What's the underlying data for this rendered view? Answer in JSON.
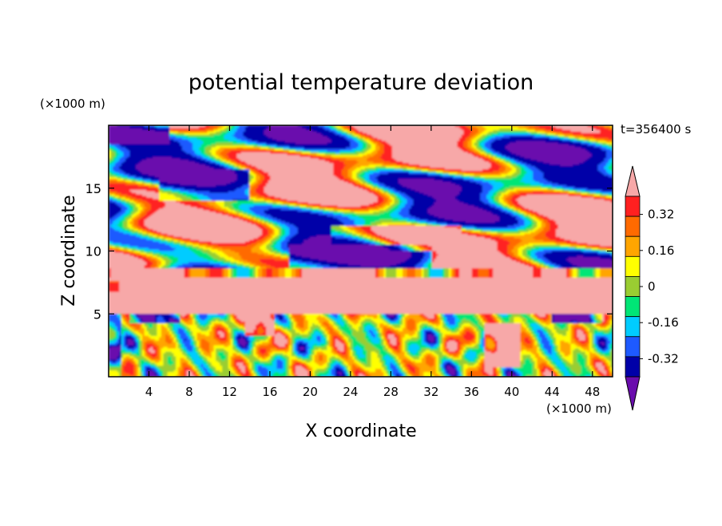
{
  "chart_data": {
    "type": "heatmap",
    "title": "potential temperature deviation",
    "xlabel": "X coordinate",
    "ylabel": "Z coordinate",
    "x_unit": "(×1000 m)",
    "y_unit": "(×1000 m)",
    "time_label": "t=356400 s",
    "xlim": [
      0,
      50
    ],
    "ylim": [
      0,
      20
    ],
    "x_ticks": [
      4,
      8,
      12,
      16,
      20,
      24,
      28,
      32,
      36,
      40,
      44,
      48
    ],
    "y_ticks": [
      5,
      10,
      15
    ],
    "colorbar": {
      "levels": [
        -0.4,
        -0.32,
        -0.24,
        -0.16,
        -0.08,
        0,
        0.08,
        0.16,
        0.24,
        0.32,
        0.4
      ],
      "tick_labels": [
        "0.32",
        "0.16",
        "0",
        "-0.16",
        "-0.32"
      ],
      "tick_values": [
        0.32,
        0.16,
        0,
        -0.16,
        -0.32
      ],
      "colors_top_to_bottom": [
        "#f7a8a8",
        "#ff2020",
        "#ff6a00",
        "#ffa500",
        "#ffff00",
        "#9acd32",
        "#00e676",
        "#00ccff",
        "#1e5aff",
        "#0000a8",
        "#6a0dad"
      ],
      "extend": "both"
    },
    "palette": {
      "high": "#f7a8a8",
      "low": "#6a0dad"
    }
  }
}
